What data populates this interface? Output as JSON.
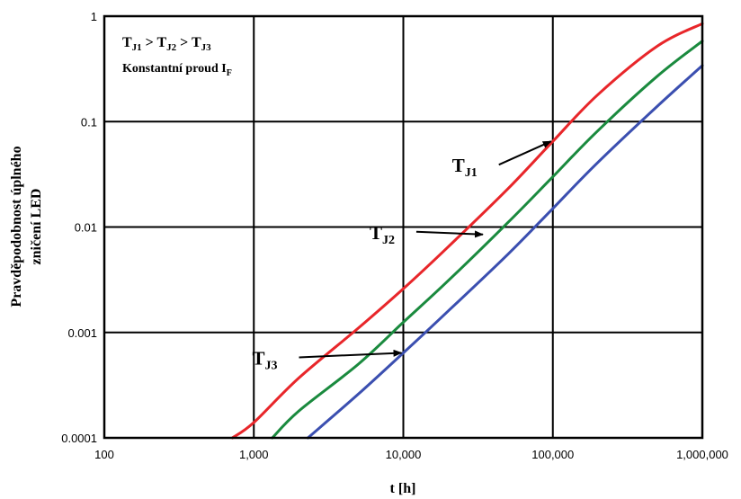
{
  "chart_data": {
    "type": "line",
    "xlabel": "t [h]",
    "ylabel_lines": [
      "Pravděpodobnost úplného",
      "zničení LED"
    ],
    "x_scale": "log",
    "y_scale": "log",
    "xlim": [
      100,
      1000000
    ],
    "ylim": [
      0.0001,
      1
    ],
    "x_ticks": [
      100,
      1000,
      10000,
      100000,
      1000000
    ],
    "x_tick_labels": [
      "100",
      "1,000",
      "10,000",
      "100,000",
      "1,000,000"
    ],
    "y_ticks": [
      0.0001,
      0.001,
      0.01,
      0.1,
      1
    ],
    "y_tick_labels": [
      "0.0001",
      "0.001",
      "0.01",
      "0.1",
      "1"
    ],
    "grid": true,
    "legend_text": {
      "line1": {
        "parts": [
          [
            "T",
            "J1"
          ],
          [
            " > T",
            "J2"
          ],
          [
            " > T",
            "J3"
          ]
        ]
      },
      "line2": {
        "text": "Konstantní proud I",
        "sub": "F"
      }
    },
    "series": [
      {
        "name": "TJ1",
        "color": "#e8262a",
        "x": [
          720,
          1000,
          2000,
          5000,
          10000,
          20000,
          50000,
          100000,
          200000,
          500000,
          1000000
        ],
        "y": [
          0.0001,
          0.00014,
          0.00037,
          0.0011,
          0.0026,
          0.0065,
          0.023,
          0.065,
          0.18,
          0.52,
          0.85
        ]
      },
      {
        "name": "TJ2",
        "color": "#1a8a3e",
        "x": [
          1330,
          2000,
          5000,
          10000,
          20000,
          50000,
          100000,
          200000,
          500000,
          1000000
        ],
        "y": [
          0.0001,
          0.00018,
          0.0005,
          0.00125,
          0.0031,
          0.011,
          0.03,
          0.082,
          0.27,
          0.58
        ]
      },
      {
        "name": "TJ3",
        "color": "#3b4fb0",
        "x": [
          2300,
          5000,
          10000,
          20000,
          50000,
          100000,
          200000,
          500000,
          1000000
        ],
        "y": [
          0.0001,
          0.00026,
          0.00064,
          0.0016,
          0.0055,
          0.015,
          0.041,
          0.14,
          0.34
        ]
      }
    ],
    "annotations": [
      {
        "base": "T",
        "sub": "J1",
        "arrow_to": {
          "x": 100000,
          "y": 0.065
        }
      },
      {
        "base": "T",
        "sub": "J2",
        "arrow_to": {
          "x": 35000,
          "y": 0.0085
        }
      },
      {
        "base": "T",
        "sub": "J3",
        "arrow_to": {
          "x": 10000,
          "y": 0.00064
        }
      }
    ]
  }
}
